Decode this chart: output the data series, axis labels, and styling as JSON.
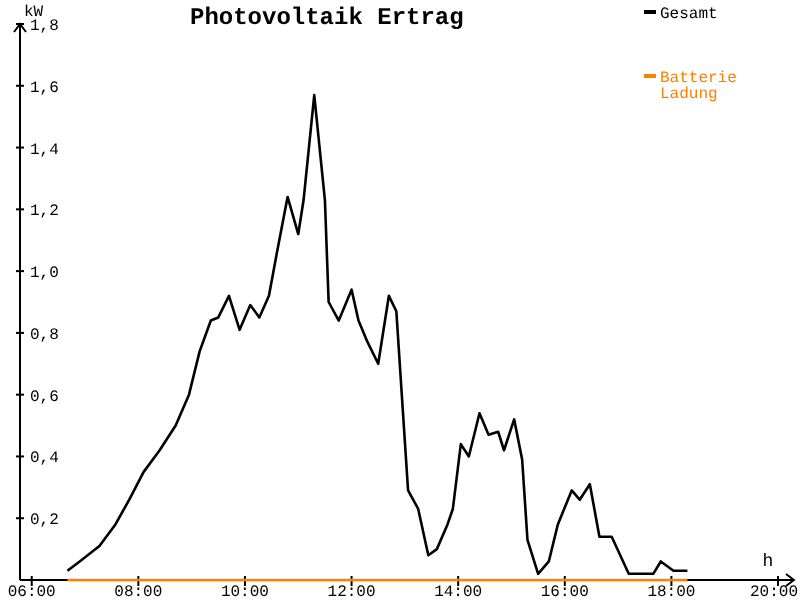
{
  "chart_data": {
    "type": "line",
    "title": "Photovoltaik Ertrag",
    "ylabel": "kW",
    "xlabel": "h",
    "xlim": [
      5.78,
      20.3
    ],
    "xticks": [
      {
        "value": 6,
        "label": "06:00"
      },
      {
        "value": 8,
        "label": "08:00"
      },
      {
        "value": 10,
        "label": "10:00"
      },
      {
        "value": 12,
        "label": "12:00"
      },
      {
        "value": 14,
        "label": "14:00"
      },
      {
        "value": 16,
        "label": "16:00"
      },
      {
        "value": 18,
        "label": "18:00"
      },
      {
        "value": 20,
        "label": "20:00"
      }
    ],
    "ylim": [
      0,
      1.8
    ],
    "yticks": [
      {
        "value": 0.2,
        "label": "0,2"
      },
      {
        "value": 0.4,
        "label": "0,4"
      },
      {
        "value": 0.6,
        "label": "0,6"
      },
      {
        "value": 0.8,
        "label": "0,8"
      },
      {
        "value": 1.0,
        "label": "1,0"
      },
      {
        "value": 1.2,
        "label": "1,2"
      },
      {
        "value": 1.4,
        "label": "1,4"
      },
      {
        "value": 1.6,
        "label": "1,6"
      },
      {
        "value": 1.8,
        "label": "1,8"
      }
    ],
    "grid": false,
    "legend": "top right",
    "marker": "none",
    "line_style": "solid",
    "series": [
      {
        "name": "Gesamt",
        "color": "#000000",
        "x": [
          6.67,
          6.9,
          7.27,
          7.57,
          7.83,
          8.1,
          8.4,
          8.7,
          8.95,
          9.15,
          9.36,
          9.5,
          9.7,
          9.9,
          10.1,
          10.27,
          10.45,
          10.6,
          10.8,
          11.0,
          11.1,
          11.3,
          11.5,
          11.57,
          11.76,
          12.0,
          12.13,
          12.3,
          12.5,
          12.7,
          12.84,
          12.95,
          13.06,
          13.25,
          13.44,
          13.6,
          13.8,
          13.9,
          14.05,
          14.2,
          14.4,
          14.57,
          14.75,
          14.86,
          15.05,
          15.2,
          15.3,
          15.5,
          15.7,
          15.87,
          16.13,
          16.28,
          16.47,
          16.65,
          16.88,
          17.2,
          17.66,
          17.8,
          18.04,
          18.3
        ],
        "values": [
          0.03,
          0.06,
          0.11,
          0.18,
          0.26,
          0.35,
          0.42,
          0.5,
          0.6,
          0.74,
          0.84,
          0.85,
          0.92,
          0.81,
          0.89,
          0.85,
          0.92,
          1.06,
          1.24,
          1.12,
          1.23,
          1.57,
          1.23,
          0.9,
          0.84,
          0.94,
          0.84,
          0.77,
          0.7,
          0.92,
          0.87,
          0.58,
          0.29,
          0.23,
          0.08,
          0.1,
          0.18,
          0.23,
          0.44,
          0.4,
          0.54,
          0.47,
          0.48,
          0.42,
          0.52,
          0.39,
          0.13,
          0.02,
          0.06,
          0.18,
          0.29,
          0.26,
          0.31,
          0.14,
          0.14,
          0.02,
          0.02,
          0.06,
          0.03,
          0.03
        ]
      },
      {
        "name": "Batterie Ladung",
        "color": "#ff8000",
        "x": [
          6.67,
          18.3
        ],
        "values": [
          0,
          0
        ]
      }
    ]
  }
}
